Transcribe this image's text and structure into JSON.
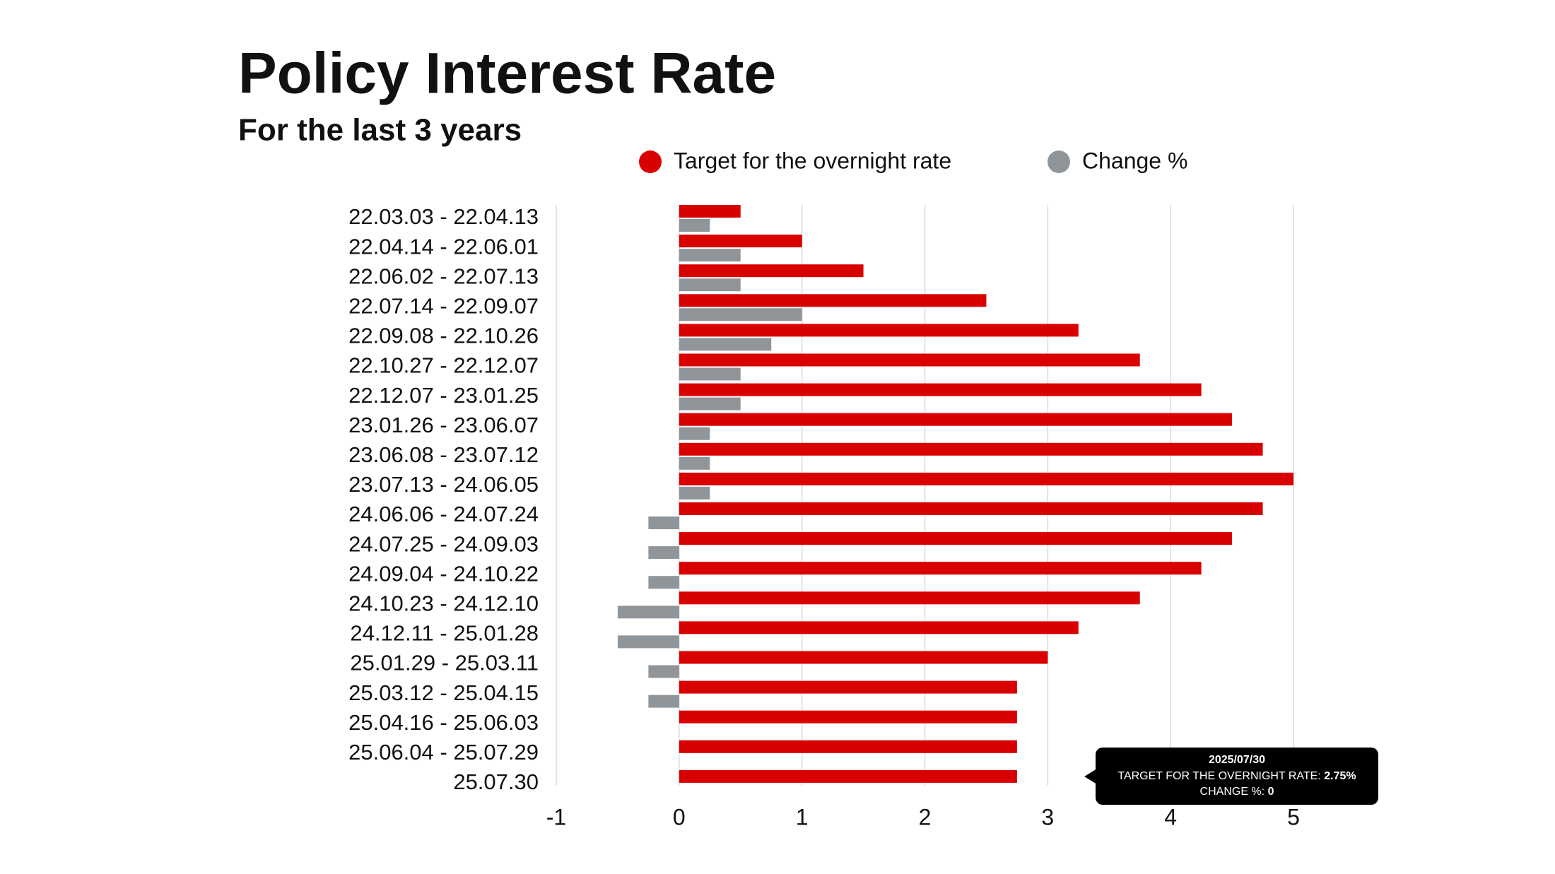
{
  "chart_data": {
    "type": "bar",
    "orientation": "horizontal",
    "title": "Policy Interest Rate",
    "subtitle": "For the last 3 years",
    "categories": [
      "22.03.03 - 22.04.13",
      "22.04.14 - 22.06.01",
      "22.06.02 - 22.07.13",
      "22.07.14 - 22.09.07",
      "22.09.08 - 22.10.26",
      "22.10.27 - 22.12.07",
      "22.12.07 - 23.01.25",
      "23.01.26 - 23.06.07",
      "23.06.08 - 23.07.12",
      "23.07.13 - 24.06.05",
      "24.06.06 - 24.07.24",
      "24.07.25 - 24.09.03",
      "24.09.04 - 24.10.22",
      "24.10.23 - 24.12.10",
      "24.12.11 - 25.01.28",
      "25.01.29 - 25.03.11",
      "25.03.12 - 25.04.15",
      "25.04.16 - 25.06.03",
      "25.06.04 - 25.07.29",
      "25.07.30"
    ],
    "series": [
      {
        "name": "Target for the overnight rate",
        "color": "#d90000",
        "values": [
          0.5,
          1,
          1.5,
          2.5,
          3.25,
          3.75,
          4.25,
          4.5,
          4.75,
          5,
          4.75,
          4.5,
          4.25,
          3.75,
          3.25,
          3,
          2.75,
          2.75,
          2.75,
          2.75
        ]
      },
      {
        "name": "Change %",
        "color": "#90959a",
        "values": [
          0.25,
          0.5,
          0.5,
          1,
          0.75,
          0.5,
          0.5,
          0.25,
          0.25,
          0.25,
          -0.25,
          -0.25,
          -0.25,
          -0.5,
          -0.5,
          -0.25,
          -0.25,
          0,
          0,
          0
        ]
      }
    ],
    "xlim": [
      -1,
      5
    ],
    "xticks": [
      -1,
      0,
      1,
      2,
      3,
      4,
      5
    ],
    "grid": true,
    "legend": "top",
    "tooltip": {
      "title": "2025/07/30",
      "lines": [
        {
          "label": "TARGET FOR THE OVERNIGHT RATE:",
          "value": "2.75%"
        },
        {
          "label": "CHANGE %:",
          "value": "0"
        }
      ]
    }
  }
}
